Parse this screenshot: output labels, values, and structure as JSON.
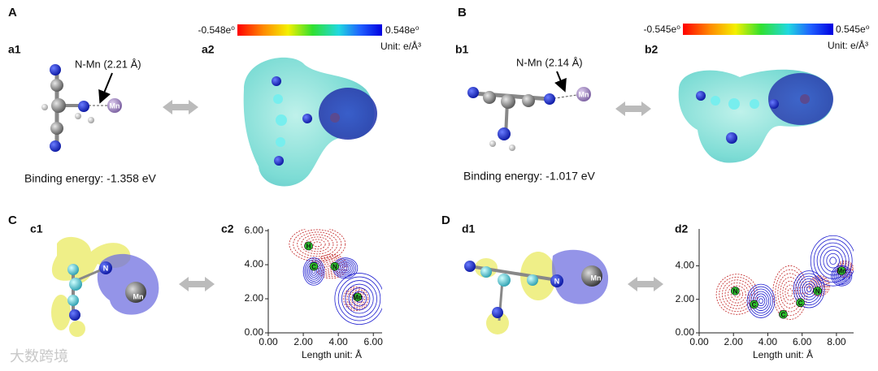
{
  "A": {
    "label": "A",
    "a1": {
      "label": "a1",
      "annotation": "N-Mn (2.21 Å)",
      "atom": "Mn",
      "binding_energy": "Binding energy:  -1.358 eV"
    },
    "a2": {
      "label": "a2",
      "colorbar_min": "-0.548e⁰",
      "colorbar_max": "0.548e⁰",
      "unit": "Unit: e/Å³"
    }
  },
  "B": {
    "label": "B",
    "b1": {
      "label": "b1",
      "annotation": "N-Mn (2.14 Å)",
      "atom": "Mn",
      "binding_energy": "Binding energy:  -1.017 eV"
    },
    "b2": {
      "label": "b2",
      "colorbar_min": "-0.545e⁰",
      "colorbar_max": "0.545e⁰",
      "unit": "Unit: e/Å³"
    }
  },
  "C": {
    "label": "C",
    "c1": {
      "label": "c1",
      "atoms": [
        "N",
        "Mn"
      ]
    }
  },
  "D": {
    "label": "D",
    "d1": {
      "label": "d1",
      "atoms": [
        "N",
        "Mn"
      ]
    }
  },
  "plots": [
    {
      "label": "c2",
      "xlabel": "Length unit: Å",
      "xlim": [
        0,
        6.5
      ],
      "ylim": [
        0,
        6.1
      ],
      "xticks": [
        {
          "value": 0,
          "label": "0.00"
        },
        {
          "value": 2,
          "label": "2.00"
        },
        {
          "value": 4,
          "label": "4.00"
        },
        {
          "value": 6,
          "label": "6.00"
        }
      ],
      "yticks": [
        {
          "value": 0,
          "label": "0.00"
        },
        {
          "value": 2,
          "label": "2.00"
        },
        {
          "value": 4,
          "label": "4.00"
        },
        {
          "value": 6,
          "label": "6.00"
        }
      ],
      "atoms": [
        "H",
        "C",
        "N",
        "Mn"
      ]
    },
    {
      "label": "d2",
      "xlabel": "Length unit: Å",
      "xlim": [
        0,
        9
      ],
      "ylim": [
        0,
        6.2
      ],
      "xticks": [
        {
          "value": 0,
          "label": "0.00"
        },
        {
          "value": 2,
          "label": "2.00"
        },
        {
          "value": 4,
          "label": "4.00"
        },
        {
          "value": 6,
          "label": "6.00"
        },
        {
          "value": 8,
          "label": "8.00"
        }
      ],
      "yticks": [
        {
          "value": 0,
          "label": "0.00"
        },
        {
          "value": 2,
          "label": "2.00"
        },
        {
          "value": 4,
          "label": "4.00"
        }
      ],
      "atoms": [
        "N",
        "C",
        "C",
        "C",
        "N",
        "Mn"
      ]
    }
  ],
  "watermark": "大数跨境"
}
